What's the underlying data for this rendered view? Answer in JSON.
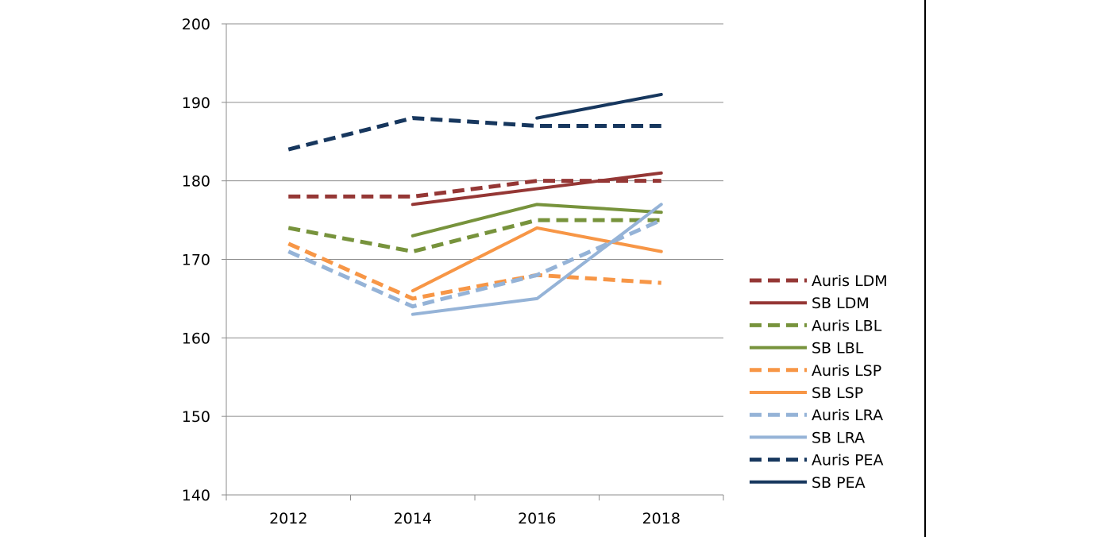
{
  "chart_data": {
    "type": "line",
    "title": "",
    "xlabel": "",
    "ylabel": "",
    "categories": [
      "2012",
      "2014",
      "2016",
      "2018"
    ],
    "ylim": [
      140,
      200
    ],
    "yticks": [
      140,
      150,
      160,
      170,
      180,
      190,
      200
    ],
    "grid": "horizontal",
    "legend_position": "right",
    "series": [
      {
        "name": "Auris LDM",
        "values": [
          178,
          178,
          180,
          180
        ],
        "color": "#953735",
        "dashed": true
      },
      {
        "name": "SB LDM",
        "values": [
          null,
          177,
          179,
          181
        ],
        "color": "#953735",
        "dashed": false
      },
      {
        "name": "Auris LBL",
        "values": [
          174,
          171,
          175,
          175
        ],
        "color": "#77933c",
        "dashed": true
      },
      {
        "name": "SB LBL",
        "values": [
          null,
          173,
          177,
          176
        ],
        "color": "#77933c",
        "dashed": false
      },
      {
        "name": "Auris LSP",
        "values": [
          172,
          165,
          168,
          167
        ],
        "color": "#f79646",
        "dashed": true
      },
      {
        "name": "SB LSP",
        "values": [
          null,
          166,
          174,
          171
        ],
        "color": "#f79646",
        "dashed": false
      },
      {
        "name": "Auris LRA",
        "values": [
          171,
          164,
          168,
          175
        ],
        "color": "#95b3d7",
        "dashed": true
      },
      {
        "name": "SB LRA",
        "values": [
          null,
          163,
          165,
          177
        ],
        "color": "#95b3d7",
        "dashed": false
      },
      {
        "name": "Auris PEA",
        "values": [
          184,
          188,
          187,
          187
        ],
        "color": "#17375e",
        "dashed": true
      },
      {
        "name": "SB PEA",
        "values": [
          null,
          null,
          188,
          191
        ],
        "color": "#17375e",
        "dashed": false
      }
    ]
  }
}
